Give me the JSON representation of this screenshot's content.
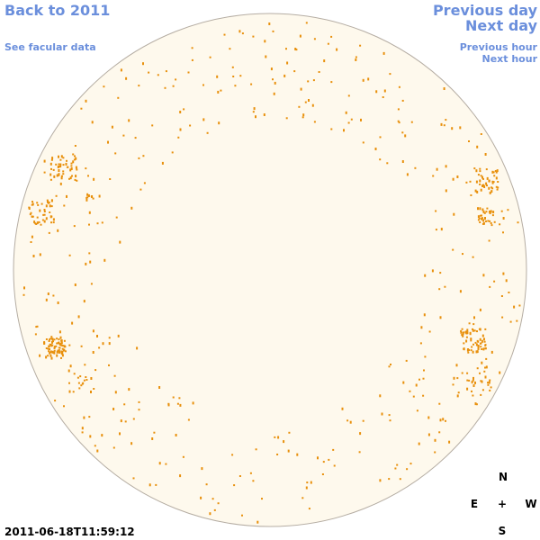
{
  "nav": {
    "back": "Back to 2011",
    "facular": "See facular data",
    "previous_day": "Previous day",
    "next_day": "Next day",
    "previous_hour": "Previous hour",
    "next_hour": "Next hour"
  },
  "compass": {
    "north": "N",
    "east": "E",
    "center": "+",
    "west": "W",
    "south": "S"
  },
  "timestamp": "2011-06-18T11:59:12"
}
